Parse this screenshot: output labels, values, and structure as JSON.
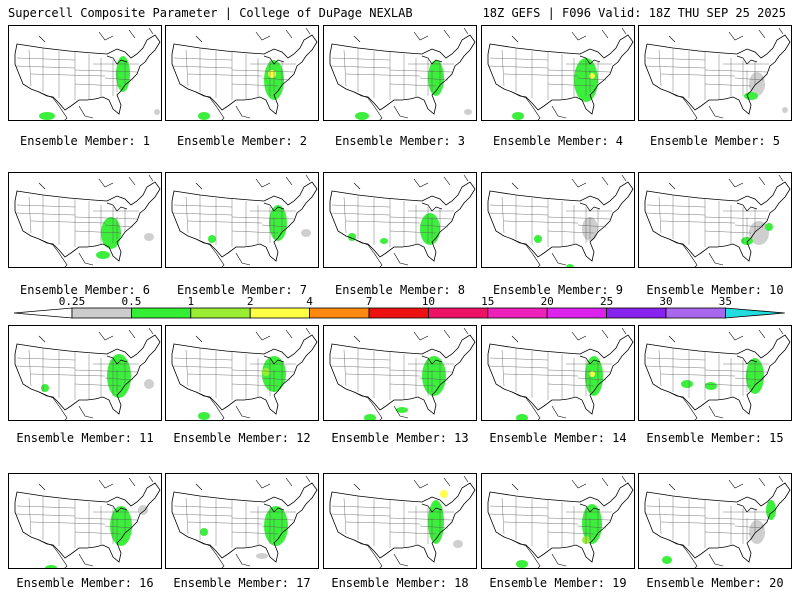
{
  "header": {
    "left_title": "Supercell Composite Parameter | College of DuPage NEXLAB",
    "right_title": "18Z GEFS | F096 Valid: 18Z THU SEP 25 2025"
  },
  "colorbar": {
    "ticks": [
      "0.25",
      "0.5",
      "1",
      "2",
      "4",
      "7",
      "10",
      "15",
      "20",
      "25",
      "30",
      "35"
    ],
    "colors": [
      "#cccccc",
      "#33ee33",
      "#99ee33",
      "#ffff44",
      "#ff8811",
      "#ee1111",
      "#ee1166",
      "#ee22bb",
      "#dd22ee",
      "#8822ee",
      "#aa66ee",
      "#22dddd"
    ]
  },
  "members": [
    {
      "label": "Ensemble Member: 1"
    },
    {
      "label": "Ensemble Member: 2"
    },
    {
      "label": "Ensemble Member: 3"
    },
    {
      "label": "Ensemble Member: 4"
    },
    {
      "label": "Ensemble Member: 5"
    },
    {
      "label": "Ensemble Member: 6"
    },
    {
      "label": "Ensemble Member: 7"
    },
    {
      "label": "Ensemble Member: 8"
    },
    {
      "label": "Ensemble Member: 9"
    },
    {
      "label": "Ensemble Member: 10"
    },
    {
      "label": "Ensemble Member: 11"
    },
    {
      "label": "Ensemble Member: 12"
    },
    {
      "label": "Ensemble Member: 13"
    },
    {
      "label": "Ensemble Member: 14"
    },
    {
      "label": "Ensemble Member: 15"
    },
    {
      "label": "Ensemble Member: 16"
    },
    {
      "label": "Ensemble Member: 17"
    },
    {
      "label": "Ensemble Member: 18"
    },
    {
      "label": "Ensemble Member: 19"
    },
    {
      "label": "Ensemble Member: 20"
    }
  ]
}
